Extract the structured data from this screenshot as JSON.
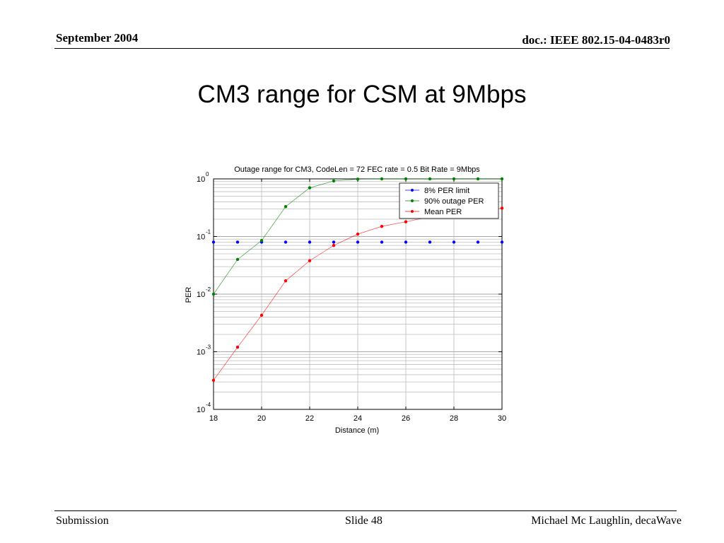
{
  "header": {
    "date": "September 2004",
    "doc": "doc.: IEEE 802.15-04-0483r0"
  },
  "slide": {
    "title": "CM3 range for CSM at 9Mbps"
  },
  "footer": {
    "left": "Submission",
    "center": "Slide 48",
    "right": "Michael Mc Laughlin, decaWave"
  },
  "chart_data": {
    "type": "line",
    "title": "Outage range for CM3, CodeLen = 72 FEC rate = 0.5 Bit Rate = 9Mbps",
    "xlabel": "Distance (m)",
    "ylabel": "PER",
    "yscale": "log",
    "xlim": [
      18,
      30
    ],
    "ylim": [
      0.0001,
      1
    ],
    "x_ticks": [
      "18",
      "20",
      "22",
      "24",
      "26",
      "28",
      "30"
    ],
    "y_ticks": [
      {
        "base": "10",
        "exp": "0"
      },
      {
        "base": "10",
        "exp": "-1"
      },
      {
        "base": "10",
        "exp": "-2"
      },
      {
        "base": "10",
        "exp": "-3"
      },
      {
        "base": "10",
        "exp": "-4"
      }
    ],
    "grid": true,
    "legend_position": "top-right",
    "x": [
      18,
      19,
      20,
      21,
      22,
      23,
      24,
      25,
      26,
      27,
      28,
      29,
      30
    ],
    "series": [
      {
        "name": "8% PER limit",
        "color": "#0000ff",
        "values": [
          0.08,
          0.08,
          0.08,
          0.08,
          0.08,
          0.08,
          0.08,
          0.08,
          0.08,
          0.08,
          0.08,
          0.08,
          0.08
        ]
      },
      {
        "name": "90% outage PER",
        "color": "#008000",
        "values": [
          0.01,
          0.04,
          0.085,
          0.33,
          0.7,
          0.92,
          0.99,
          1.0,
          1.0,
          1.0,
          1.0,
          1.0,
          1.0
        ]
      },
      {
        "name": "Mean PER",
        "color": "#ff0000",
        "values": [
          0.00032,
          0.0012,
          0.0043,
          0.017,
          0.038,
          0.07,
          0.11,
          0.15,
          0.18,
          0.22,
          0.25,
          0.28,
          0.31
        ]
      }
    ]
  }
}
